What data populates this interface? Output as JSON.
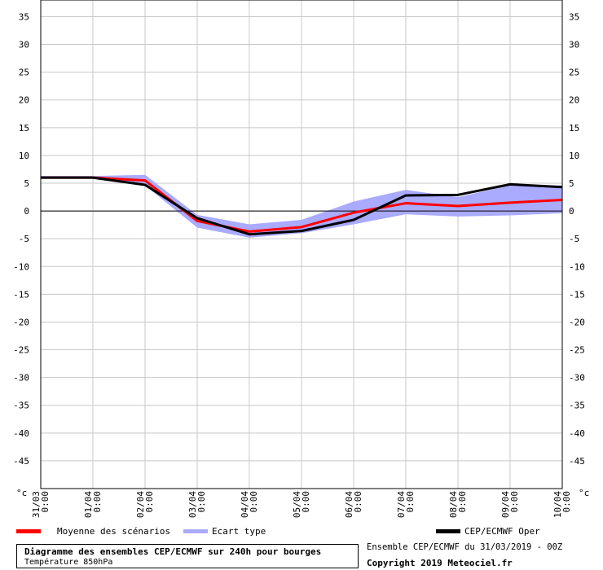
{
  "chart_data": {
    "type": "line",
    "unit_left": "°c",
    "unit_right": "°c",
    "ylim": [
      -50,
      38
    ],
    "yticks": [
      35,
      30,
      25,
      20,
      15,
      10,
      5,
      0,
      -5,
      -10,
      -15,
      -20,
      -25,
      -30,
      -35,
      -40,
      -45
    ],
    "x": [
      0,
      1,
      2,
      3,
      4,
      5,
      6,
      7,
      8,
      9,
      10
    ],
    "x_labels": [
      {
        "date": "31/03",
        "time": "0:00"
      },
      {
        "date": "01/04",
        "time": "0:00"
      },
      {
        "date": "02/04",
        "time": "0:00"
      },
      {
        "date": "03/04",
        "time": "0:00"
      },
      {
        "date": "04/04",
        "time": "0:00"
      },
      {
        "date": "05/04",
        "time": "0:00"
      },
      {
        "date": "06/04",
        "time": "0:00"
      },
      {
        "date": "07/04",
        "time": "0:00"
      },
      {
        "date": "08/04",
        "time": "0:00"
      },
      {
        "date": "09/04",
        "time": "0:00"
      },
      {
        "date": "10/04",
        "time": "0:00"
      }
    ],
    "grid": true,
    "series": [
      {
        "name": "Ecart type",
        "kind": "band",
        "color": "#aaaaff",
        "upper": [
          6.3,
          6.3,
          6.5,
          -0.7,
          -2.4,
          -1.6,
          1.7,
          3.8,
          2.5,
          4.6,
          4.6
        ],
        "lower": [
          5.8,
          5.8,
          4.6,
          -3.0,
          -4.8,
          -4.0,
          -2.4,
          -0.6,
          -1.0,
          -0.8,
          -0.4
        ]
      },
      {
        "name": "Moyenne des scénarios",
        "kind": "line",
        "color": "#ff0000",
        "values": [
          6.0,
          6.0,
          5.5,
          -1.8,
          -3.7,
          -2.9,
          -0.3,
          1.4,
          0.9,
          1.5,
          2.0
        ]
      },
      {
        "name": "CEP/ECMWF Oper",
        "kind": "line",
        "color": "#000000",
        "values": [
          6.0,
          6.0,
          4.7,
          -1.3,
          -4.2,
          -3.6,
          -1.6,
          2.8,
          2.9,
          4.8,
          4.3
        ]
      }
    ]
  },
  "footer": {
    "title": "Diagramme des ensembles CEP/ECMWF sur 240h pour bourges",
    "subtitle": "Température 850hPa",
    "run_info": "Ensemble CEP/ECMWF du 31/03/2019 - 00Z",
    "copyright": "Copyright 2019 Meteociel.fr"
  }
}
